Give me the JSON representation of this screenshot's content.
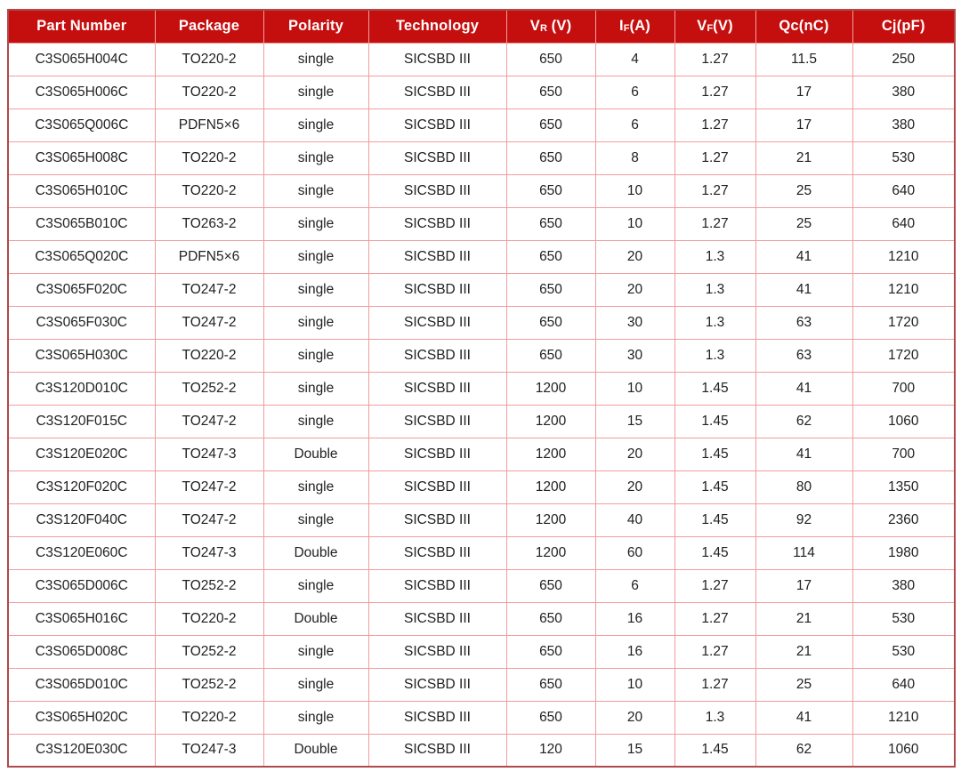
{
  "colors": {
    "header_bg": "#c50f0f",
    "header_text": "#ffffff",
    "grid_line": "#f29d9d",
    "outer_border": "#b04a4a",
    "body_text": "#212121",
    "page_bg": "#ffffff"
  },
  "table": {
    "columns": [
      {
        "base": "Part Number",
        "sub": "",
        "rest": ""
      },
      {
        "base": "Package",
        "sub": "",
        "rest": ""
      },
      {
        "base": "Polarity",
        "sub": "",
        "rest": ""
      },
      {
        "base": "Technology",
        "sub": "",
        "rest": ""
      },
      {
        "base": "V",
        "sub": "R",
        "rest": " (V)"
      },
      {
        "base": "I",
        "sub": "F",
        "rest": "(A)"
      },
      {
        "base": "V",
        "sub": "F",
        "rest": "(V)"
      },
      {
        "base": "Qc(nC)",
        "sub": "",
        "rest": ""
      },
      {
        "base": "Cj(pF)",
        "sub": "",
        "rest": ""
      }
    ],
    "rows": [
      [
        "C3S065H004C",
        "TO220-2",
        "single",
        "SICSBD III",
        "650",
        "4",
        "1.27",
        "11.5",
        "250"
      ],
      [
        "C3S065H006C",
        "TO220-2",
        "single",
        "SICSBD III",
        "650",
        "6",
        "1.27",
        "17",
        "380"
      ],
      [
        "C3S065Q006C",
        "PDFN5×6",
        "single",
        "SICSBD III",
        "650",
        "6",
        "1.27",
        "17",
        "380"
      ],
      [
        "C3S065H008C",
        "TO220-2",
        "single",
        "SICSBD III",
        "650",
        "8",
        "1.27",
        "21",
        "530"
      ],
      [
        "C3S065H010C",
        "TO220-2",
        "single",
        "SICSBD III",
        "650",
        "10",
        "1.27",
        "25",
        "640"
      ],
      [
        "C3S065B010C",
        "TO263-2",
        "single",
        "SICSBD III",
        "650",
        "10",
        "1.27",
        "25",
        "640"
      ],
      [
        "C3S065Q020C",
        "PDFN5×6",
        "single",
        "SICSBD III",
        "650",
        "20",
        "1.3",
        "41",
        "1210"
      ],
      [
        "C3S065F020C",
        "TO247-2",
        "single",
        "SICSBD III",
        "650",
        "20",
        "1.3",
        "41",
        "1210"
      ],
      [
        "C3S065F030C",
        "TO247-2",
        "single",
        "SICSBD III",
        "650",
        "30",
        "1.3",
        "63",
        "1720"
      ],
      [
        "C3S065H030C",
        "TO220-2",
        "single",
        "SICSBD III",
        "650",
        "30",
        "1.3",
        "63",
        "1720"
      ],
      [
        "C3S120D010C",
        "TO252-2",
        "single",
        "SICSBD III",
        "1200",
        "10",
        "1.45",
        "41",
        "700"
      ],
      [
        "C3S120F015C",
        "TO247-2",
        "single",
        "SICSBD III",
        "1200",
        "15",
        "1.45",
        "62",
        "1060"
      ],
      [
        "C3S120E020C",
        "TO247-3",
        "Double",
        "SICSBD III",
        "1200",
        "20",
        "1.45",
        "41",
        "700"
      ],
      [
        "C3S120F020C",
        "TO247-2",
        "single",
        "SICSBD III",
        "1200",
        "20",
        "1.45",
        "80",
        "1350"
      ],
      [
        "C3S120F040C",
        "TO247-2",
        "single",
        "SICSBD III",
        "1200",
        "40",
        "1.45",
        "92",
        "2360"
      ],
      [
        "C3S120E060C",
        "TO247-3",
        "Double",
        "SICSBD III",
        "1200",
        "60",
        "1.45",
        "114",
        "1980"
      ],
      [
        "C3S065D006C",
        "TO252-2",
        "single",
        "SICSBD III",
        "650",
        "6",
        "1.27",
        "17",
        "380"
      ],
      [
        "C3S065H016C",
        "TO220-2",
        "Double",
        "SICSBD III",
        "650",
        "16",
        "1.27",
        "21",
        "530"
      ],
      [
        "C3S065D008C",
        "TO252-2",
        "single",
        "SICSBD III",
        "650",
        "16",
        "1.27",
        "21",
        "530"
      ],
      [
        "C3S065D010C",
        "TO252-2",
        "single",
        "SICSBD III",
        "650",
        "10",
        "1.27",
        "25",
        "640"
      ],
      [
        "C3S065H020C",
        "TO220-2",
        "single",
        "SICSBD III",
        "650",
        "20",
        "1.3",
        "41",
        "1210"
      ],
      [
        "C3S120E030C",
        "TO247-3",
        "Double",
        "SICSBD III",
        "120",
        "15",
        "1.45",
        "62",
        "1060"
      ]
    ]
  }
}
